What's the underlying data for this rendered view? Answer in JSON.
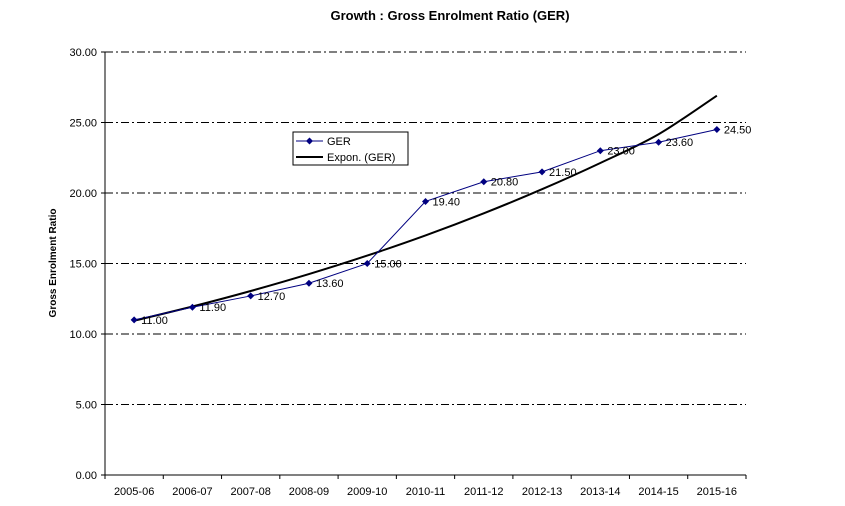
{
  "chart_data": {
    "type": "line",
    "title": "Growth : Gross Enrolment Ratio (GER)",
    "xlabel": "",
    "ylabel": "Gross Enrolment Ratio",
    "ylim": [
      0,
      30
    ],
    "yticks": [
      "0.00",
      "5.00",
      "10.00",
      "15.00",
      "20.00",
      "25.00",
      "30.00"
    ],
    "grid": "horizontal dash-dot",
    "legend_position": "upper-left inside plot",
    "categories": [
      "2005-06",
      "2006-07",
      "2007-08",
      "2008-09",
      "2009-10",
      "2010-11",
      "2011-12",
      "2012-13",
      "2013-14",
      "2014-15",
      "2015-16"
    ],
    "series": [
      {
        "name": "GER",
        "color": "#000080",
        "marker": "diamond",
        "values": [
          11.0,
          11.9,
          12.7,
          13.6,
          15.0,
          19.4,
          20.8,
          21.5,
          23.0,
          23.6,
          24.5
        ],
        "labels": [
          "11.00",
          "11.90",
          "12.70",
          "13.60",
          "15.00",
          "19.40",
          "20.80",
          "21.50",
          "23.00",
          "23.60",
          "24.50"
        ]
      },
      {
        "name": "Expon. (GER)",
        "color": "#000000",
        "type": "trendline",
        "values": [
          10.94,
          11.95,
          13.05,
          14.25,
          15.56,
          16.99,
          18.56,
          20.27,
          22.13,
          24.17,
          26.9
        ]
      }
    ]
  }
}
